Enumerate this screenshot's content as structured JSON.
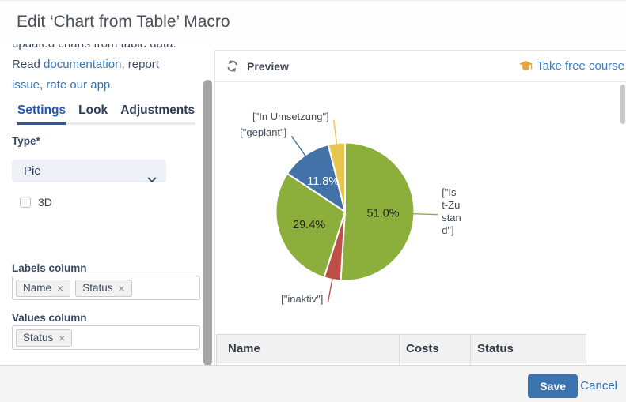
{
  "dialog": {
    "title": "Edit ‘Chart from Table’ Macro"
  },
  "sidebar": {
    "intro": {
      "line1": "updated charts from table data.",
      "read": "Read ",
      "documentation": "documentation",
      "after_doc": ", report",
      "issue": "issue",
      "comma": ", ",
      "rate": "rate our app",
      "period": "."
    },
    "tabs": [
      {
        "label": "Settings",
        "active": true
      },
      {
        "label": "Look",
        "active": false
      },
      {
        "label": "Adjustments",
        "active": false
      }
    ],
    "fields": {
      "type_label": "Type*",
      "type_value": "Pie",
      "threed_label": "3D",
      "threed_checked": false,
      "labels_column_label": "Labels column",
      "labels_tags": [
        "Name",
        "Status"
      ],
      "values_column_label": "Values column",
      "values_tags": [
        "Status"
      ],
      "tag_remove_glyph": "×"
    }
  },
  "preview": {
    "header": {
      "title": "Preview",
      "course_link": "Take free course"
    },
    "table": {
      "headers": [
        "Name",
        "Costs",
        "Status"
      ]
    }
  },
  "chart_data": {
    "type": "pie",
    "title": "",
    "legend": "none",
    "label_color": "#454e58",
    "slices": [
      {
        "name": "[\"Ist-Zustand\"]",
        "value": 51.0,
        "color": "#8cae3b",
        "pct_label": "51.0%",
        "pct_color": "#1f1f1f",
        "label_lines": [
          "[\"Is",
          "t-Zu",
          "stan",
          "d\"]"
        ]
      },
      {
        "name": "[\"inaktiv\"]",
        "value": 3.9,
        "color": "#bf4e49",
        "pct_label": "",
        "pct_color": "",
        "label_lines": [
          "[\"inaktiv\"]"
        ]
      },
      {
        "name": "",
        "value": 29.4,
        "color": "#8cae3b",
        "pct_label": "29.4%",
        "pct_color": "#1f1f1f",
        "label_lines": []
      },
      {
        "name": "[\"geplant\"]",
        "value": 11.8,
        "color": "#4272a8",
        "pct_label": "11.8%",
        "pct_color": "#ffffff",
        "label_lines": [
          "[\"geplant\"]"
        ]
      },
      {
        "name": "[\"In Umsetzung\"]",
        "value": 3.9,
        "color": "#e7c64f",
        "pct_label": "",
        "pct_color": "",
        "label_lines": [
          "[\"In Umsetzung\"]"
        ]
      }
    ]
  },
  "footer": {
    "save_label": "Save",
    "cancel_label": "Cancel"
  },
  "colors": {
    "save_button": "#3b73af",
    "link_blue": "#3573b1",
    "active_tab_blue": "#2457ae",
    "course_icon_orange": "#e8a33d"
  }
}
